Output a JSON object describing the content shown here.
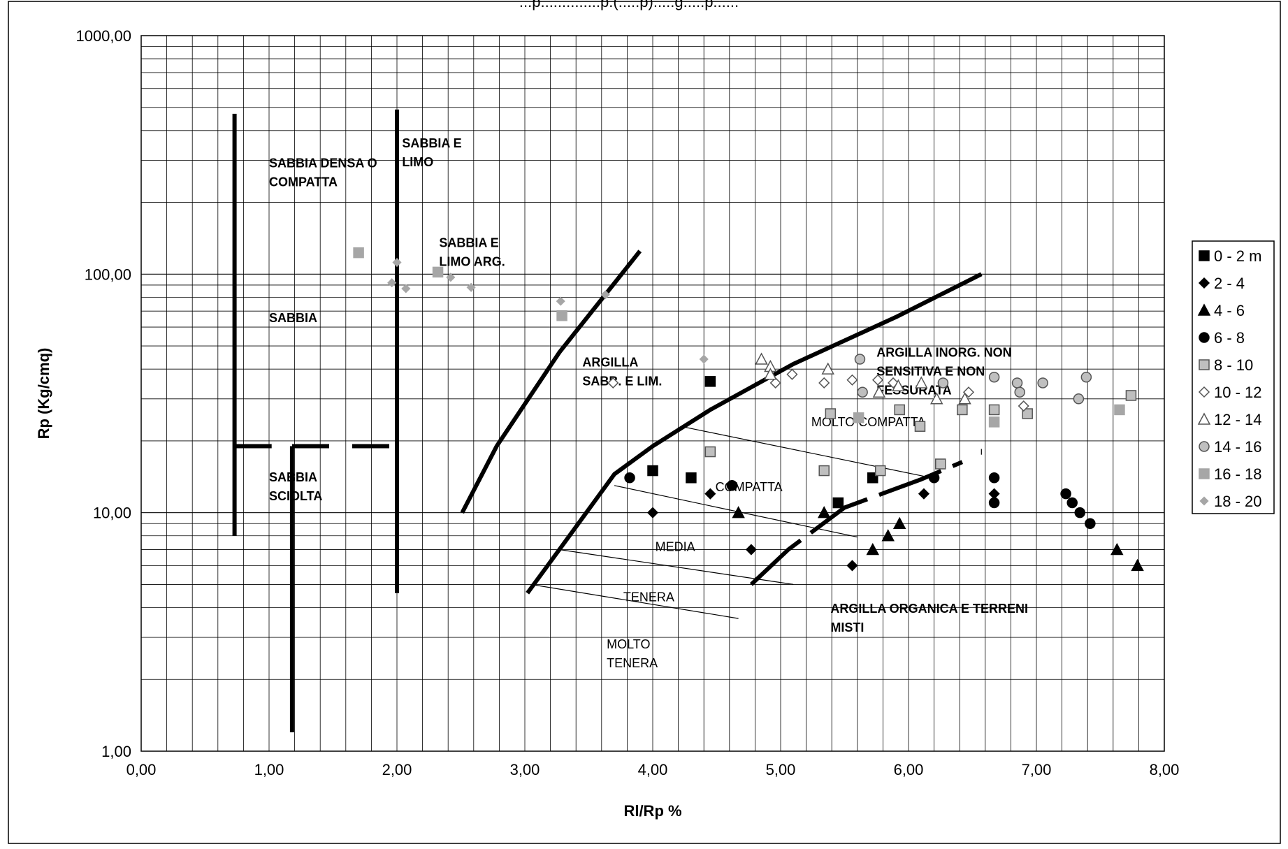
{
  "chart_data": {
    "type": "scatter",
    "title": "...p..............p.(.....p).....g.....p......",
    "xlabel": "Rl/Rp %",
    "ylabel": "Rp (Kg/cmq)",
    "xlim": [
      0,
      8
    ],
    "ylim": [
      1,
      1000
    ],
    "yscale": "log",
    "grid": true,
    "legend_position": "right",
    "x_ticks": [
      "0,00",
      "1,00",
      "2,00",
      "3,00",
      "4,00",
      "5,00",
      "6,00",
      "7,00",
      "8,00"
    ],
    "y_ticks": [
      "1,00",
      "10,00",
      "100,00",
      "1000,00"
    ],
    "series": [
      {
        "name": "0 - 2 m",
        "marker": "square",
        "fill": "#000000",
        "stroke": "#000000",
        "points": [
          [
            4.45,
            35.5
          ],
          [
            4.0,
            15
          ],
          [
            4.3,
            14
          ],
          [
            5.45,
            11
          ],
          [
            5.72,
            14
          ]
        ]
      },
      {
        "name": "2 - 4",
        "marker": "diamond",
        "fill": "#000000",
        "stroke": "#000000",
        "points": [
          [
            4.0,
            10
          ],
          [
            4.45,
            12
          ],
          [
            4.77,
            7
          ],
          [
            5.56,
            6
          ],
          [
            6.12,
            12
          ],
          [
            6.67,
            12
          ]
        ]
      },
      {
        "name": "4 - 6",
        "marker": "triangle",
        "fill": "#000000",
        "stroke": "#000000",
        "points": [
          [
            4.67,
            10
          ],
          [
            5.34,
            10
          ],
          [
            5.72,
            7
          ],
          [
            5.84,
            8
          ],
          [
            5.93,
            9
          ],
          [
            7.63,
            7
          ],
          [
            7.79,
            6
          ]
        ]
      },
      {
        "name": "6 - 8",
        "marker": "circle",
        "fill": "#000000",
        "stroke": "#000000",
        "points": [
          [
            3.82,
            14
          ],
          [
            4.62,
            13
          ],
          [
            6.2,
            14
          ],
          [
            6.67,
            14
          ],
          [
            6.67,
            11
          ],
          [
            7.23,
            12
          ],
          [
            7.28,
            11
          ],
          [
            7.34,
            10
          ],
          [
            7.42,
            9
          ]
        ]
      },
      {
        "name": "8 - 10",
        "marker": "square",
        "fill": "#bfbfbf",
        "stroke": "#555555",
        "points": [
          [
            4.45,
            18
          ],
          [
            5.34,
            15
          ],
          [
            5.39,
            26
          ],
          [
            5.78,
            15
          ],
          [
            5.93,
            27
          ],
          [
            6.09,
            23
          ],
          [
            6.25,
            16
          ],
          [
            6.42,
            27
          ],
          [
            6.67,
            27
          ],
          [
            6.93,
            26
          ],
          [
            7.74,
            31
          ]
        ]
      },
      {
        "name": "10 - 12",
        "marker": "diamond",
        "fill": "#ffffff",
        "stroke": "#555555",
        "points": [
          [
            3.69,
            35
          ],
          [
            4.96,
            35
          ],
          [
            5.09,
            38
          ],
          [
            5.34,
            35
          ],
          [
            5.56,
            36
          ],
          [
            5.76,
            36
          ],
          [
            5.88,
            35
          ],
          [
            6.47,
            32
          ],
          [
            6.9,
            28
          ]
        ]
      },
      {
        "name": "12 - 14",
        "marker": "triangle",
        "fill": "#ffffff",
        "stroke": "#555555",
        "points": [
          [
            4.85,
            44
          ],
          [
            4.92,
            41
          ],
          [
            4.92,
            38
          ],
          [
            5.37,
            40
          ],
          [
            5.77,
            32
          ],
          [
            5.92,
            34
          ],
          [
            6.1,
            35
          ],
          [
            6.22,
            30
          ],
          [
            6.44,
            30
          ]
        ]
      },
      {
        "name": "14 - 16",
        "marker": "circle",
        "fill": "#bfbfbf",
        "stroke": "#555555",
        "points": [
          [
            5.62,
            44
          ],
          [
            5.64,
            32
          ],
          [
            6.27,
            35
          ],
          [
            6.67,
            37
          ],
          [
            6.85,
            35
          ],
          [
            6.87,
            32
          ],
          [
            7.05,
            35
          ],
          [
            7.33,
            30
          ],
          [
            7.39,
            37
          ]
        ]
      },
      {
        "name": "16 - 18",
        "marker": "square",
        "fill": "#a6a6a6",
        "stroke": "#a6a6a6",
        "points": [
          [
            1.7,
            123
          ],
          [
            2.32,
            102
          ],
          [
            3.29,
            67
          ],
          [
            5.61,
            25
          ],
          [
            6.67,
            24
          ],
          [
            7.65,
            27
          ]
        ]
      },
      {
        "name": "18 - 20",
        "marker": "small-diamond",
        "fill": "#a6a6a6",
        "stroke": "#a6a6a6",
        "points": [
          [
            1.96,
            92
          ],
          [
            2.0,
            112
          ],
          [
            2.07,
            87
          ],
          [
            2.42,
            97
          ],
          [
            2.58,
            88
          ],
          [
            3.28,
            77
          ],
          [
            3.63,
            82
          ],
          [
            4.4,
            44
          ]
        ]
      }
    ],
    "annotations": [
      {
        "lines": [
          "SABBIA DENSA O",
          "COMPATTA"
        ],
        "x": 1.0,
        "y": 280,
        "style": "bold"
      },
      {
        "lines": [
          "SABBIA E",
          "LIMO"
        ],
        "x": 2.04,
        "y": 340,
        "style": "bold"
      },
      {
        "lines": [
          "SABBIA E",
          "LIMO ARG."
        ],
        "x": 2.33,
        "y": 130,
        "style": "bold"
      },
      {
        "lines": [
          "SABBIA"
        ],
        "x": 1.0,
        "y": 63,
        "style": "bold"
      },
      {
        "lines": [
          "SABBIA",
          "SCIOLTA"
        ],
        "x": 1.0,
        "y": 13.5,
        "style": "bold"
      },
      {
        "lines": [
          "ARGILLA",
          "SABB. E LIM."
        ],
        "x": 3.45,
        "y": 41,
        "style": "bold"
      },
      {
        "lines": [
          "ARGILLA INORG. NON",
          "SENSITIVA E NON",
          "FESSURATA"
        ],
        "x": 5.75,
        "y": 45,
        "style": "bold"
      },
      {
        "lines": [
          "MOLTO COMPATTA"
        ],
        "x": 5.24,
        "y": 23,
        "style": "plain"
      },
      {
        "lines": [
          "COMPATTA"
        ],
        "x": 4.49,
        "y": 12.3,
        "style": "plain"
      },
      {
        "lines": [
          "MEDIA"
        ],
        "x": 4.02,
        "y": 6.9,
        "style": "plain"
      },
      {
        "lines": [
          "TENERA"
        ],
        "x": 3.77,
        "y": 4.25,
        "style": "plain"
      },
      {
        "lines": [
          "MOLTO",
          "TENERA"
        ],
        "x": 3.64,
        "y": 2.7,
        "style": "plain"
      },
      {
        "lines": [
          "ARGILLA ORGANICA E TERRENI",
          "MISTI"
        ],
        "x": 5.39,
        "y": 3.8,
        "style": "bold"
      }
    ],
    "boundaries": [
      {
        "style": "thick",
        "points": [
          [
            0.73,
            470
          ],
          [
            0.73,
            8
          ]
        ]
      },
      {
        "style": "thick",
        "points": [
          [
            1.18,
            19
          ],
          [
            1.18,
            1.2
          ]
        ]
      },
      {
        "style": "thick",
        "points": [
          [
            2.0,
            490
          ],
          [
            2.0,
            4.6
          ]
        ]
      },
      {
        "style": "thick",
        "points": [
          [
            0.73,
            19
          ],
          [
            1.02,
            19
          ]
        ]
      },
      {
        "style": "thick",
        "points": [
          [
            1.18,
            19
          ],
          [
            1.47,
            19
          ]
        ]
      },
      {
        "style": "thick",
        "points": [
          [
            1.65,
            19
          ],
          [
            1.94,
            19
          ]
        ]
      },
      {
        "style": "thick",
        "points": [
          [
            2.51,
            10
          ],
          [
            2.78,
            19
          ],
          [
            3.27,
            47
          ],
          [
            3.9,
            125
          ]
        ]
      },
      {
        "style": "thick",
        "points": [
          [
            3.02,
            4.6
          ],
          [
            3.27,
            7
          ],
          [
            3.7,
            14.5
          ],
          [
            4.0,
            19
          ],
          [
            4.45,
            27
          ],
          [
            5.1,
            42
          ],
          [
            5.9,
            66
          ],
          [
            6.57,
            100
          ]
        ]
      },
      {
        "style": "thick-dashed",
        "points": [
          [
            4.77,
            5
          ],
          [
            5.06,
            7
          ],
          [
            5.5,
            10.5
          ],
          [
            6.1,
            13.8
          ],
          [
            6.42,
            16.3
          ]
        ]
      },
      {
        "style": "thin",
        "points": [
          [
            4.22,
            23
          ],
          [
            6.18,
            14
          ]
        ]
      },
      {
        "style": "thin",
        "points": [
          [
            3.7,
            13
          ],
          [
            5.6,
            7.9
          ]
        ]
      },
      {
        "style": "thin",
        "points": [
          [
            3.27,
            7
          ],
          [
            5.1,
            5
          ]
        ]
      },
      {
        "style": "thin",
        "points": [
          [
            3.05,
            5
          ],
          [
            4.67,
            3.6
          ]
        ]
      },
      {
        "style": "thin",
        "points": [
          [
            6.57,
            18.5
          ],
          [
            6.57,
            17.5
          ]
        ]
      }
    ]
  }
}
